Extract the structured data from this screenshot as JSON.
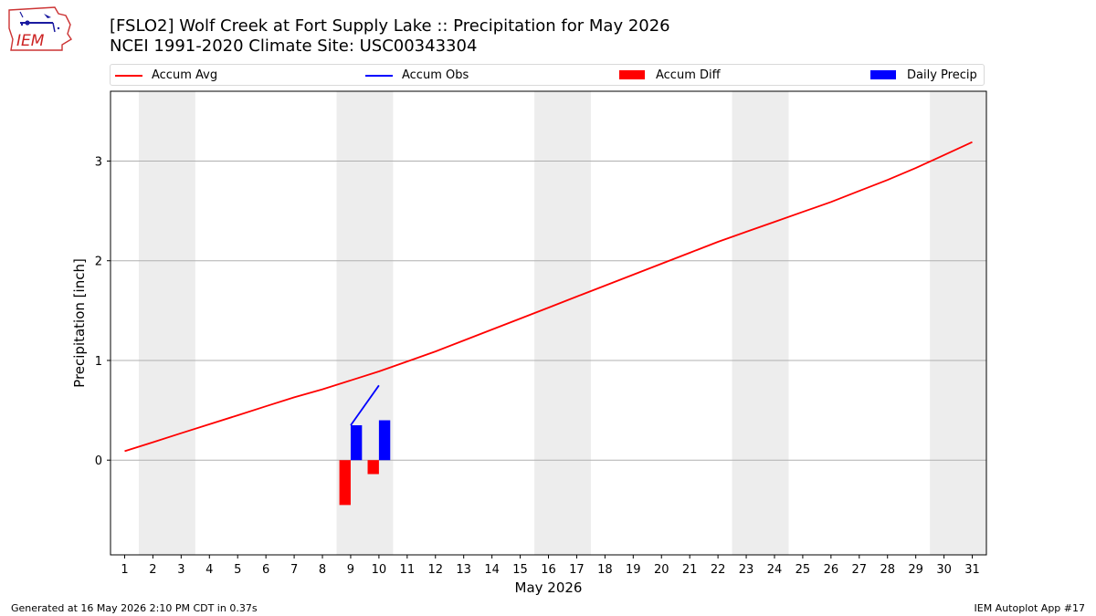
{
  "header": {
    "title_line1": "[FSLO2] Wolf Creek at Fort Supply Lake :: Precipitation for May 2026",
    "title_line2": "NCEI 1991-2020 Climate Site: USC00343304",
    "logo_text": "IEM"
  },
  "legend": {
    "accum_avg": "Accum Avg",
    "accum_obs": "Accum Obs",
    "accum_diff": "Accum Diff",
    "daily_precip": "Daily Precip"
  },
  "footer": {
    "left": "Generated at 16 May 2026 2:10 PM CDT in 0.37s",
    "right": "IEM Autoplot App #17"
  },
  "colors": {
    "accum_avg": "#ff0000",
    "accum_obs": "#0000ff",
    "accum_diff": "#ff0000",
    "daily_precip": "#0000ff",
    "weekend_band": "#ededed",
    "grid": "#b0b0b0"
  },
  "chart_data": {
    "type": "line",
    "xlabel": "May 2026",
    "ylabel": "Precipitation [inch]",
    "xlim": [
      0.5,
      31.5
    ],
    "ylim": [
      -0.95,
      3.7
    ],
    "yticks": [
      0,
      1,
      2,
      3
    ],
    "x": [
      1,
      2,
      3,
      4,
      5,
      6,
      7,
      8,
      9,
      10,
      11,
      12,
      13,
      14,
      15,
      16,
      17,
      18,
      19,
      20,
      21,
      22,
      23,
      24,
      25,
      26,
      27,
      28,
      29,
      30,
      31
    ],
    "weekend_bands": [
      [
        1.5,
        3.5
      ],
      [
        8.5,
        10.5
      ],
      [
        15.5,
        17.5
      ],
      [
        22.5,
        24.5
      ],
      [
        29.5,
        31.5
      ]
    ],
    "grid": "horizontal",
    "legend_position": "top",
    "series": [
      {
        "name": "Accum Avg",
        "type": "line",
        "x": [
          1,
          2,
          3,
          4,
          5,
          6,
          7,
          8,
          9,
          10,
          11,
          12,
          13,
          14,
          15,
          16,
          17,
          18,
          19,
          20,
          21,
          22,
          23,
          24,
          25,
          26,
          27,
          28,
          29,
          30,
          31
        ],
        "values": [
          0.09,
          0.18,
          0.27,
          0.36,
          0.45,
          0.54,
          0.63,
          0.71,
          0.8,
          0.89,
          0.99,
          1.09,
          1.2,
          1.31,
          1.42,
          1.53,
          1.64,
          1.75,
          1.86,
          1.97,
          2.08,
          2.19,
          2.29,
          2.39,
          2.49,
          2.59,
          2.7,
          2.81,
          2.93,
          3.06,
          3.19
        ]
      },
      {
        "name": "Accum Obs",
        "type": "line",
        "x": [
          9,
          10
        ],
        "values": [
          0.35,
          0.75
        ]
      },
      {
        "name": "Accum Diff",
        "type": "bar",
        "x": [
          9,
          10
        ],
        "values": [
          -0.45,
          -0.14
        ]
      },
      {
        "name": "Daily Precip",
        "type": "bar",
        "x": [
          9,
          10
        ],
        "values": [
          0.35,
          0.4
        ]
      }
    ]
  }
}
